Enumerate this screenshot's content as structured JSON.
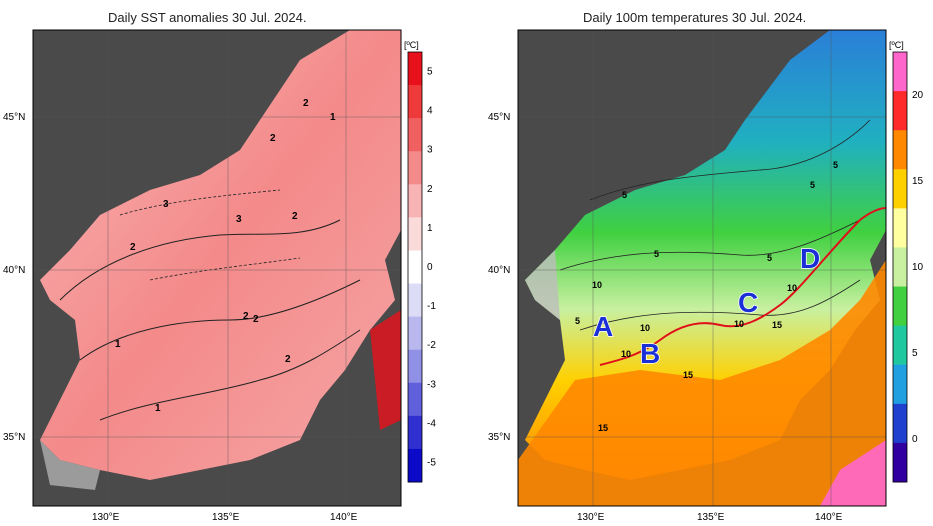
{
  "left_panel": {
    "title": "Daily SST anomalies 30 Jul. 2024.",
    "unit": "[ºC]",
    "colorbar_ticks": [
      "5",
      "4",
      "3",
      "2",
      "1",
      "0",
      "-1",
      "-2",
      "-3",
      "-4",
      "-5"
    ],
    "colorbar_colors": [
      "#e8101a",
      "#ee3a3a",
      "#f06060",
      "#f48a8a",
      "#f8b4b4",
      "#fbdada",
      "#ffffff",
      "#dcdcf6",
      "#b8b8ee",
      "#9090e6",
      "#6060dc",
      "#3030d0",
      "#0a0ac8"
    ],
    "contour_labels": [
      "2",
      "1",
      "2",
      "3",
      "3",
      "2",
      "2",
      "2",
      "2",
      "1",
      "1",
      "2"
    ]
  },
  "right_panel": {
    "title": "Daily 100m temperatures 30 Jul. 2024.",
    "unit": "[ºC]",
    "colorbar_ticks": [
      "20",
      "15",
      "10",
      "5",
      "0"
    ],
    "colorbar_colors": [
      "#ff66cc",
      "#ff2a2a",
      "#ff8800",
      "#ffd000",
      "#ffffa0",
      "#c8f0a0",
      "#40d040",
      "#20c8a0",
      "#20a0e0",
      "#2040d0",
      "#3000a0"
    ],
    "region_labels": [
      "A",
      "B",
      "C",
      "D"
    ],
    "contour_labels": [
      "5",
      "5",
      "5",
      "5",
      "10",
      "5",
      "10",
      "10",
      "10",
      "15",
      "15",
      "15",
      "10",
      "5"
    ]
  },
  "axes": {
    "lat_ticks": [
      "45°N",
      "40°N",
      "35°N"
    ],
    "lon_ticks": [
      "130°E",
      "135°E",
      "140°E"
    ]
  },
  "colors": {
    "land": "#4a4a4a",
    "shallow_mask": "#bdbdbd",
    "grid": "#555555",
    "region_label": "#1a2fd6",
    "front_line": "#e0101a"
  }
}
